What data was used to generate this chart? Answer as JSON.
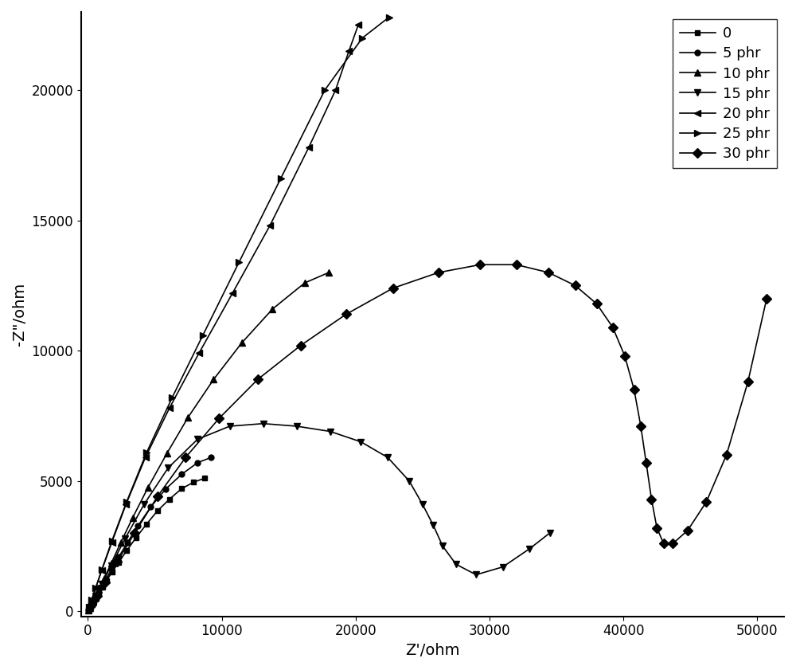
{
  "title": "",
  "xlabel": "Z'/ohm",
  "ylabel": "-Z\"/ohm",
  "xlim": [
    -500,
    52000
  ],
  "ylim": [
    -200,
    23000
  ],
  "xticks": [
    0,
    10000,
    20000,
    30000,
    40000,
    50000
  ],
  "yticks": [
    0,
    5000,
    10000,
    15000,
    20000
  ],
  "background_color": "#ffffff",
  "series": [
    {
      "label": "0",
      "marker": "s",
      "color": "#000000",
      "markersize": 5,
      "x": [
        50,
        100,
        150,
        220,
        320,
        450,
        620,
        840,
        1100,
        1400,
        1800,
        2300,
        2900,
        3600,
        4400,
        5200,
        6100,
        7000,
        7900,
        8700
      ],
      "y": [
        30,
        60,
        100,
        160,
        240,
        360,
        510,
        700,
        920,
        1180,
        1490,
        1870,
        2320,
        2820,
        3350,
        3850,
        4300,
        4700,
        4950,
        5100
      ]
    },
    {
      "label": "5 phr",
      "marker": "o",
      "color": "#000000",
      "markersize": 5,
      "x": [
        50,
        100,
        160,
        250,
        370,
        530,
        740,
        1000,
        1350,
        1780,
        2300,
        2950,
        3750,
        4700,
        5800,
        7000,
        8200,
        9200
      ],
      "y": [
        35,
        75,
        130,
        210,
        320,
        480,
        670,
        930,
        1240,
        1620,
        2070,
        2630,
        3280,
        4000,
        4680,
        5250,
        5700,
        5900
      ]
    },
    {
      "label": "10 phr",
      "marker": "^",
      "color": "#000000",
      "markersize": 6,
      "x": [
        60,
        150,
        300,
        520,
        820,
        1220,
        1750,
        2450,
        3350,
        4500,
        5900,
        7500,
        9400,
        11500,
        13800,
        16200,
        18000
      ],
      "y": [
        50,
        130,
        280,
        510,
        830,
        1260,
        1840,
        2620,
        3590,
        4750,
        6050,
        7450,
        8900,
        10300,
        11600,
        12600,
        13000
      ]
    },
    {
      "label": "15 phr",
      "marker": "v",
      "color": "#000000",
      "markersize": 6,
      "x": [
        100,
        280,
        580,
        1050,
        1750,
        2800,
        4200,
        6000,
        8200,
        10600,
        13100,
        15600,
        18100,
        20400,
        22400,
        24000,
        25000,
        25800,
        26500,
        27500,
        29000,
        31000,
        33000,
        34500
      ],
      "y": [
        100,
        280,
        580,
        1060,
        1760,
        2800,
        4100,
        5500,
        6600,
        7100,
        7200,
        7100,
        6900,
        6500,
        5900,
        5000,
        4100,
        3300,
        2500,
        1800,
        1400,
        1700,
        2400,
        3000
      ]
    },
    {
      "label": "20 phr",
      "marker": "<",
      "color": "#000000",
      "markersize": 6,
      "x": [
        100,
        280,
        580,
        1050,
        1800,
        2850,
        4300,
        6100,
        8300,
        10800,
        13600,
        16500,
        18500,
        19500,
        20200
      ],
      "y": [
        150,
        420,
        880,
        1580,
        2650,
        4100,
        5900,
        7800,
        9900,
        12200,
        14800,
        17800,
        20000,
        21500,
        22500
      ]
    },
    {
      "label": "25 phr",
      "marker": ">",
      "color": "#000000",
      "markersize": 6,
      "x": [
        100,
        280,
        580,
        1050,
        1800,
        2900,
        4400,
        6300,
        8600,
        11300,
        14400,
        17700,
        20500,
        22500
      ],
      "y": [
        150,
        420,
        880,
        1600,
        2700,
        4200,
        6100,
        8200,
        10600,
        13400,
        16600,
        20000,
        22000,
        22800
      ]
    },
    {
      "label": "30 phr",
      "marker": "D",
      "color": "#000000",
      "markersize": 6,
      "x": [
        300,
        700,
        1300,
        2200,
        3500,
        5200,
        7300,
        9800,
        12700,
        15900,
        19300,
        22800,
        26200,
        29300,
        32000,
        34400,
        36400,
        38000,
        39200,
        40100,
        40800,
        41300,
        41700,
        42100,
        42500,
        43000,
        43700,
        44800,
        46200,
        47700,
        49300,
        50700
      ],
      "y": [
        250,
        600,
        1100,
        1900,
        3000,
        4400,
        5900,
        7400,
        8900,
        10200,
        11400,
        12400,
        13000,
        13300,
        13300,
        13000,
        12500,
        11800,
        10900,
        9800,
        8500,
        7100,
        5700,
        4300,
        3200,
        2600,
        2600,
        3100,
        4200,
        6000,
        8800,
        12000
      ]
    }
  ]
}
